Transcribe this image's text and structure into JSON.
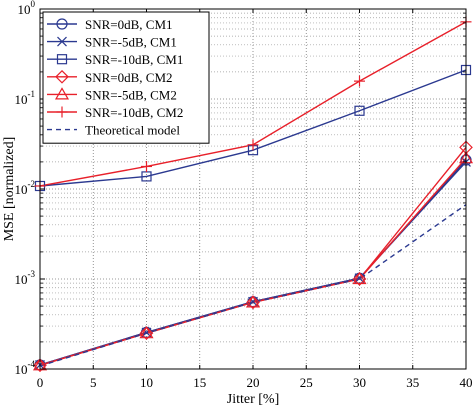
{
  "chart_data": {
    "type": "line",
    "title": "",
    "xlabel": "Jitter [%]",
    "ylabel": "MSE [normalized]",
    "x": [
      0,
      10,
      20,
      30,
      40
    ],
    "xlim": [
      0,
      40
    ],
    "ylim": [
      0.0001,
      1
    ],
    "yscale": "log",
    "grid": true,
    "legend_position": "top-left",
    "x_ticks": [
      {
        "value": 0,
        "label": "0"
      },
      {
        "value": 5,
        "label": "5"
      },
      {
        "value": 10,
        "label": "10"
      },
      {
        "value": 15,
        "label": "15"
      },
      {
        "value": 20,
        "label": "20"
      },
      {
        "value": 25,
        "label": "25"
      },
      {
        "value": 30,
        "label": "30"
      },
      {
        "value": 35,
        "label": "35"
      },
      {
        "value": 40,
        "label": "40"
      }
    ],
    "y_ticks": [
      {
        "value": 0.0001,
        "base": "10",
        "exp": "-4"
      },
      {
        "value": 0.001,
        "base": "10",
        "exp": "-3"
      },
      {
        "value": 0.01,
        "base": "10",
        "exp": "-2"
      },
      {
        "value": 0.1,
        "base": "10",
        "exp": "-1"
      },
      {
        "value": 1,
        "base": "10",
        "exp": "0"
      }
    ],
    "series": [
      {
        "name": "SNR=0dB, CM1",
        "color": "#2b3990",
        "marker": "circle",
        "dashed": false,
        "values": [
          0.000111,
          0.000255,
          0.00056,
          0.00102,
          0.021
        ]
      },
      {
        "name": "SNR=-5dB, CM1",
        "color": "#2b3990",
        "marker": "x",
        "dashed": false,
        "values": [
          0.000111,
          0.000255,
          0.00056,
          0.00102,
          0.02
        ]
      },
      {
        "name": "SNR=-10dB, CM1",
        "color": "#2b3990",
        "marker": "square",
        "dashed": false,
        "values": [
          0.0108,
          0.0138,
          0.027,
          0.074,
          0.21
        ]
      },
      {
        "name": "SNR=0dB, CM2",
        "color": "#e8202a",
        "marker": "diamond",
        "dashed": false,
        "values": [
          0.00011,
          0.00025,
          0.00055,
          0.001,
          0.029
        ]
      },
      {
        "name": "SNR=-5dB, CM2",
        "color": "#e8202a",
        "marker": "triangle",
        "dashed": false,
        "values": [
          0.00011,
          0.00025,
          0.00055,
          0.001,
          0.022
        ]
      },
      {
        "name": "SNR=-10dB, CM2",
        "color": "#e8202a",
        "marker": "plus",
        "dashed": false,
        "values": [
          0.0108,
          0.0178,
          0.031,
          0.158,
          0.72
        ]
      },
      {
        "name": "Theoretical model",
        "color": "#2b3990",
        "marker": "none",
        "dashed": true,
        "values": [
          0.000108,
          0.00025,
          0.00055,
          0.001,
          0.0067
        ]
      }
    ]
  }
}
